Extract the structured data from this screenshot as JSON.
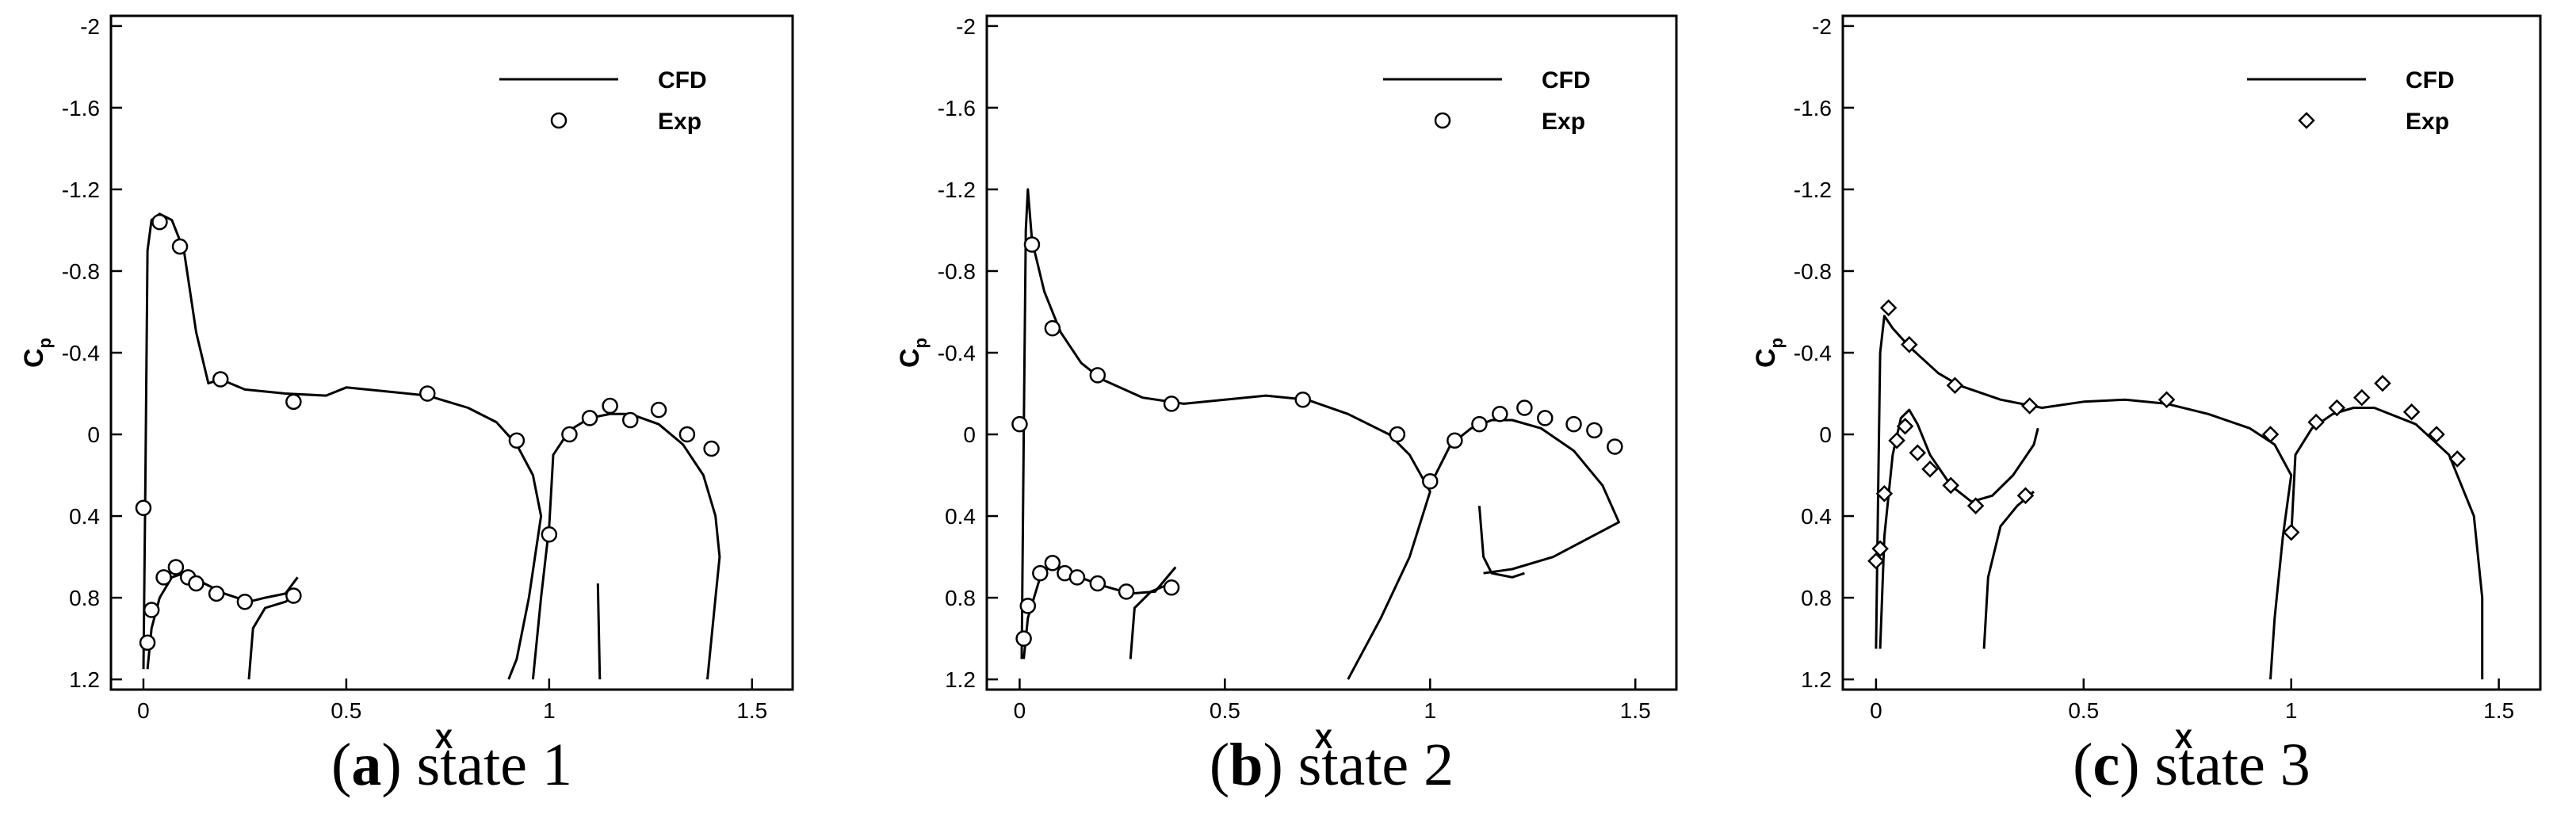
{
  "chart_data": [
    {
      "type": "line",
      "caption": [
        "(",
        "a",
        ") state 1"
      ],
      "xlabel": "X",
      "ylabel": "C",
      "ylabel_sub": "p",
      "xlim": [
        -0.08,
        1.6
      ],
      "ylim": [
        1.25,
        -2.05
      ],
      "xticks": [
        0,
        0.5,
        1,
        1.5
      ],
      "yticks": [
        -2,
        -1.6,
        -1.2,
        -0.8,
        -0.4,
        0,
        0.4,
        0.8,
        1.2
      ],
      "legend": "upper right",
      "series": [
        {
          "name": "CFD",
          "type": "line",
          "color": "#000000",
          "x": [
            0,
            0.005,
            0.01,
            0.02,
            0.04,
            0.07,
            0.1,
            0.13,
            0.16,
            0.19,
            0.25,
            0.35,
            0.45,
            0.5,
            0.6,
            0.7,
            0.8,
            0.87,
            0.92,
            0.96,
            0.98,
            0.95,
            0.92,
            0.9,
            null,
            0.01,
            0.02,
            0.04,
            0.07,
            0.1,
            0.14,
            0.2,
            0.26,
            0.3,
            0.35,
            0.38,
            null,
            0.26,
            0.27,
            0.3,
            0.35,
            0.38,
            null,
            0.96,
            0.98,
            1.0,
            1.01,
            1.05,
            1.1,
            1.15,
            1.2,
            1.27,
            1.33,
            1.38,
            1.41,
            1.42,
            1.41,
            1.4,
            1.39,
            null,
            1.12,
            1.125
          ],
          "values": [
            1.15,
            0.2,
            -0.9,
            -1.05,
            -1.08,
            -1.05,
            -0.9,
            -0.5,
            -0.25,
            -0.27,
            -0.22,
            -0.2,
            -0.19,
            -0.23,
            -0.21,
            -0.19,
            -0.13,
            -0.06,
            0.05,
            0.2,
            0.4,
            0.8,
            1.1,
            1.2,
            null,
            1.15,
            0.95,
            0.8,
            0.7,
            0.68,
            0.72,
            0.78,
            0.82,
            0.8,
            0.78,
            0.7,
            null,
            1.2,
            0.95,
            0.85,
            0.82,
            0.78,
            null,
            1.2,
            0.8,
            0.45,
            0.1,
            -0.02,
            -0.08,
            -0.1,
            -0.1,
            -0.05,
            0.05,
            0.2,
            0.4,
            0.6,
            0.8,
            1.0,
            1.2,
            null,
            0.73,
            1.2
          ]
        },
        {
          "name": "Exp",
          "type": "scatter",
          "marker": "circle",
          "color": "#000000",
          "x": [
            0,
            0.01,
            0.02,
            0.04,
            0.05,
            0.09,
            0.08,
            0.11,
            0.13,
            0.18,
            0.19,
            0.25,
            0.37,
            0.37,
            0.7,
            0.92,
            1.0,
            1.05,
            1.1,
            1.15,
            1.2,
            1.27,
            1.34,
            1.4
          ],
          "values": [
            0.36,
            1.02,
            0.86,
            -1.04,
            0.7,
            -0.92,
            0.65,
            0.7,
            0.73,
            0.78,
            -0.27,
            0.82,
            -0.16,
            0.79,
            -0.2,
            0.03,
            0.49,
            0.0,
            -0.08,
            -0.14,
            -0.07,
            -0.12,
            0.0,
            0.07
          ]
        }
      ]
    },
    {
      "type": "line",
      "caption": [
        "(",
        "b",
        ") state 2"
      ],
      "xlabel": "X",
      "ylabel": "C",
      "ylabel_sub": "p",
      "xlim": [
        -0.08,
        1.6
      ],
      "ylim": [
        1.25,
        -2.05
      ],
      "xticks": [
        0,
        0.5,
        1,
        1.5
      ],
      "yticks": [
        -2,
        -1.6,
        -1.2,
        -0.8,
        -0.4,
        0,
        0.4,
        0.8,
        1.2
      ],
      "legend": "upper right",
      "series": [
        {
          "name": "CFD",
          "type": "line",
          "color": "#000000",
          "x": [
            0.005,
            0.01,
            0.015,
            0.02,
            0.03,
            0.06,
            0.1,
            0.15,
            0.2,
            0.3,
            0.4,
            0.5,
            0.6,
            0.7,
            0.8,
            0.9,
            0.95,
            1.0,
            0.95,
            0.88,
            0.8,
            null,
            1.0,
            1.05,
            1.1,
            1.15,
            1.2,
            1.27,
            1.35,
            1.42,
            1.46,
            1.3,
            1.2,
            1.13,
            null,
            1.12,
            1.13,
            1.15,
            1.2,
            1.23,
            null,
            0.01,
            0.02,
            0.05,
            0.08,
            0.12,
            0.2,
            0.27,
            0.33,
            0.38,
            null,
            0.27,
            0.28,
            0.32,
            0.38
          ],
          "values": [
            1.1,
            0,
            -1.0,
            -1.2,
            -0.95,
            -0.7,
            -0.5,
            -0.35,
            -0.27,
            -0.18,
            -0.15,
            -0.17,
            -0.19,
            -0.17,
            -0.1,
            0.0,
            0.1,
            0.28,
            0.6,
            0.9,
            1.2,
            null,
            0.25,
            0.05,
            -0.03,
            -0.07,
            -0.07,
            -0.03,
            0.08,
            0.25,
            0.43,
            0.6,
            0.66,
            0.68,
            null,
            0.35,
            0.6,
            0.68,
            0.7,
            0.68,
            null,
            1.1,
            0.9,
            0.7,
            0.63,
            0.68,
            0.74,
            0.78,
            0.77,
            0.65,
            null,
            1.1,
            0.85,
            0.77,
            0.72
          ]
        },
        {
          "name": "Exp",
          "type": "scatter",
          "marker": "circle",
          "color": "#000000",
          "x": [
            0,
            0.01,
            0.02,
            0.03,
            0.05,
            0.08,
            0.08,
            0.11,
            0.14,
            0.19,
            0.19,
            0.26,
            0.37,
            0.37,
            0.69,
            0.92,
            1.0,
            1.06,
            1.12,
            1.17,
            1.23,
            1.28,
            1.35,
            1.4,
            1.45
          ],
          "values": [
            -0.05,
            1.0,
            0.84,
            -0.93,
            0.68,
            -0.52,
            0.63,
            0.68,
            0.7,
            -0.29,
            0.73,
            0.77,
            -0.15,
            0.75,
            -0.17,
            0.0,
            0.23,
            0.03,
            -0.05,
            -0.1,
            -0.13,
            -0.08,
            -0.05,
            -0.02,
            0.06
          ]
        }
      ]
    },
    {
      "type": "line",
      "caption": [
        "(",
        "c",
        ") state 3"
      ],
      "xlabel": "X",
      "ylabel": "C",
      "ylabel_sub": "p",
      "xlim": [
        -0.08,
        1.6
      ],
      "ylim": [
        1.25,
        -2.05
      ],
      "xticks": [
        0,
        0.5,
        1,
        1.5
      ],
      "yticks": [
        -2,
        -1.6,
        -1.2,
        -0.8,
        -0.4,
        0,
        0.4,
        0.8,
        1.2
      ],
      "legend": "upper right",
      "series": [
        {
          "name": "CFD",
          "type": "line",
          "color": "#000000",
          "x": [
            0.0,
            0.005,
            0.01,
            0.02,
            0.04,
            0.08,
            0.15,
            0.2,
            0.3,
            0.4,
            0.5,
            0.6,
            0.7,
            0.8,
            0.9,
            0.96,
            1.0,
            0.98,
            0.96,
            0.95,
            null,
            0.01,
            0.02,
            0.04,
            0.06,
            0.08,
            0.1,
            0.13,
            0.18,
            0.23,
            0.28,
            0.33,
            0.38,
            0.39,
            null,
            0.26,
            0.27,
            0.3,
            0.34,
            0.38,
            null,
            1.0,
            1.01,
            1.05,
            1.1,
            1.15,
            1.2,
            1.3,
            1.38,
            1.44,
            1.46,
            1.46
          ],
          "values": [
            1.05,
            0.3,
            -0.4,
            -0.58,
            -0.52,
            -0.43,
            -0.3,
            -0.24,
            -0.17,
            -0.13,
            -0.16,
            -0.17,
            -0.15,
            -0.1,
            -0.03,
            0.05,
            0.2,
            0.5,
            0.9,
            1.2,
            null,
            1.05,
            0.5,
            0.1,
            -0.08,
            -0.12,
            -0.05,
            0.1,
            0.25,
            0.33,
            0.3,
            0.2,
            0.05,
            -0.03,
            null,
            1.05,
            0.7,
            0.45,
            0.35,
            0.28,
            null,
            0.5,
            0.1,
            -0.03,
            -0.1,
            -0.13,
            -0.13,
            -0.05,
            0.1,
            0.4,
            0.8,
            1.2
          ]
        },
        {
          "name": "Exp",
          "type": "scatter",
          "marker": "diamond",
          "color": "#000000",
          "x": [
            0,
            0.01,
            0.02,
            0.03,
            0.05,
            0.07,
            0.08,
            0.1,
            0.13,
            0.18,
            0.19,
            0.24,
            0.37,
            0.36,
            0.7,
            0.95,
            1.0,
            1.06,
            1.11,
            1.17,
            1.22,
            1.29,
            1.35,
            1.4
          ],
          "values": [
            0.62,
            0.56,
            0.29,
            -0.62,
            0.03,
            -0.04,
            -0.44,
            0.09,
            0.17,
            0.25,
            -0.24,
            0.35,
            -0.14,
            0.3,
            -0.17,
            0.0,
            0.48,
            -0.06,
            -0.13,
            -0.18,
            -0.25,
            -0.11,
            0.0,
            0.12
          ]
        }
      ]
    }
  ]
}
